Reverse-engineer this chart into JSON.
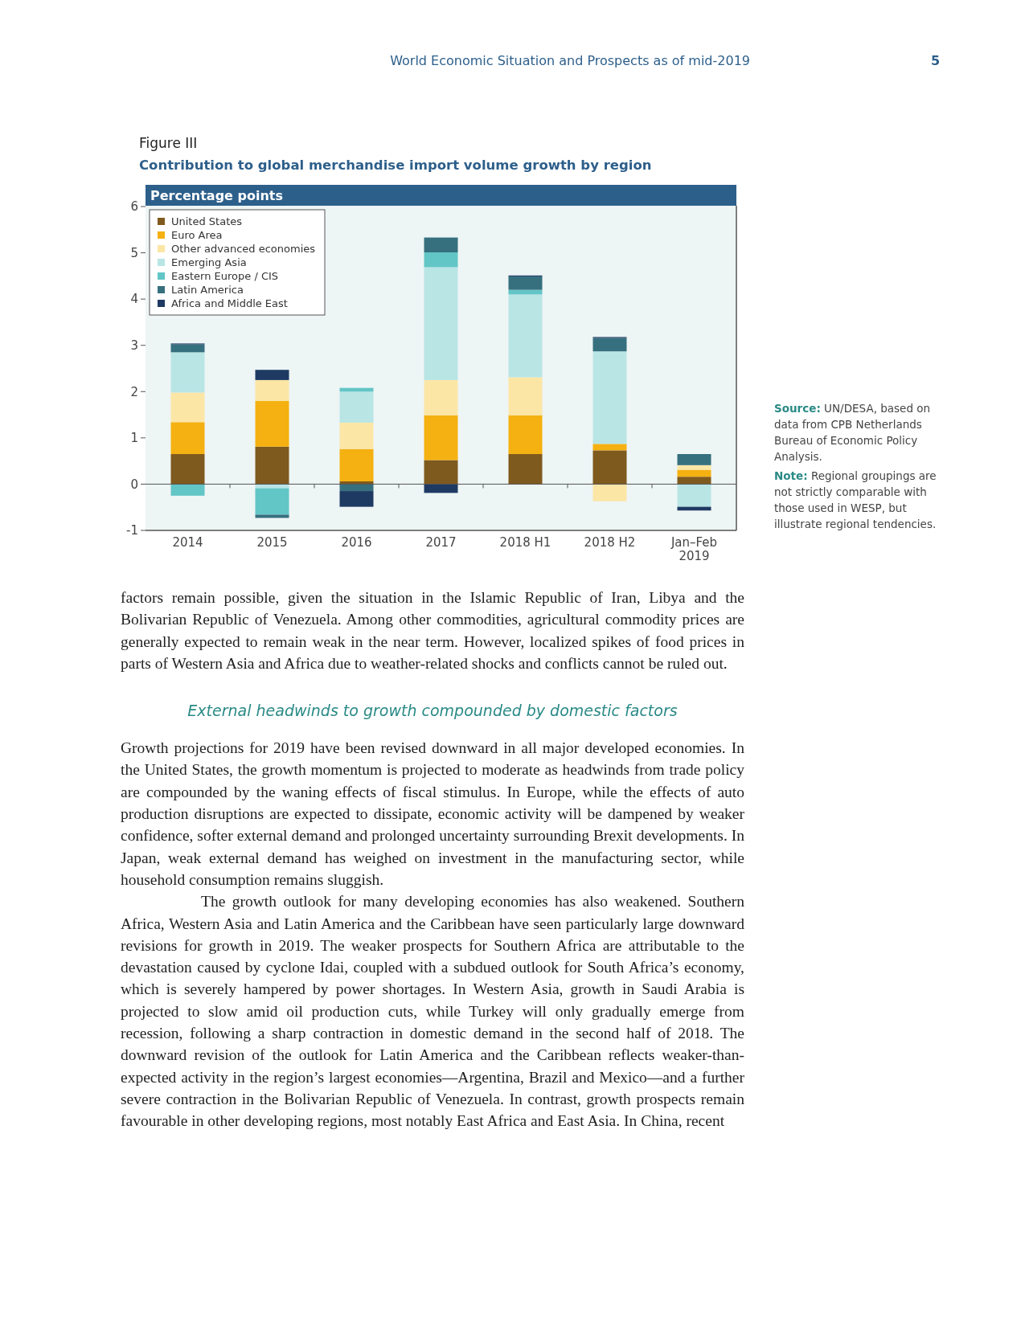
{
  "chart_data": {
    "type": "bar",
    "title": "Contribution to global merchandise import volume growth by region",
    "ylabel": "Percentage points",
    "categories": [
      "2014",
      "2015",
      "2016",
      "2017",
      "2018 H1",
      "2018 H2",
      "Jan–Feb 2019"
    ],
    "stacked": true,
    "legend": "top left",
    "ylim": [
      -1,
      6
    ],
    "yticks": [
      -1,
      0,
      1,
      2,
      3,
      4,
      5,
      6
    ],
    "series": [
      {
        "name": "United States",
        "color": "#7f5a1e",
        "values": [
          0.65,
          0.81,
          0.06,
          0.52,
          0.65,
          0.73,
          0.16
        ]
      },
      {
        "name": "Euro Area",
        "color": "#f5b111",
        "values": [
          0.69,
          0.99,
          0.7,
          0.97,
          0.84,
          0.14,
          0.15
        ]
      },
      {
        "name": "Other advanced economies",
        "color": "#fbe6a6",
        "values": [
          0.64,
          0.45,
          0.57,
          0.76,
          0.82,
          -0.37,
          0.1
        ]
      },
      {
        "name": "Emerging Asia",
        "color": "#b9e5e5",
        "values": [
          0.87,
          -0.09,
          0.67,
          2.44,
          1.79,
          2.0,
          -0.49
        ]
      },
      {
        "name": "Eastern Europe / CIS",
        "color": "#62c5c6",
        "values": [
          -0.25,
          -0.57,
          0.08,
          0.32,
          0.1,
          null,
          null
        ]
      },
      {
        "name": "Latin America",
        "color": "#36707e",
        "values": [
          0.17,
          -0.07,
          -0.15,
          0.32,
          0.29,
          0.29,
          0.24
        ]
      },
      {
        "name": "Africa and Middle East",
        "color": "#1e3a63",
        "values": [
          0.02,
          0.22,
          -0.34,
          -0.19,
          0.02,
          0.02,
          -0.08
        ]
      }
    ],
    "annotations": [
      "World Economic Situation and Prospects as of mid-2019",
      "5",
      "Figure III",
      "Source: UN/DESA, based on data from CPB Netherlands Bureau of Economic Policy Analysis.",
      "Note: Regional groupings are not strictly comparable with those used in WESP, but illustrate regional tendencies.",
      "factors remain possible, given the situation in the Islamic Republic of Iran, Libya and the Bolivarian Republic of Venezuela. Among other commodities, agricultural commodity prices are generally expected to remain weak in the near term. However, localized spikes of food prices in parts of Western Asia and Africa due to weather-related shocks and conflicts cannot be ruled out.",
      "External headwinds to growth compounded by domestic factors",
      "Growth projections for 2019 have been revised downward in all major developed economies. In the United States, the growth momentum is projected to moderate as headwinds from trade policy are compounded by the waning effects of fiscal stimulus. In Europe, while the effects of auto production disruptions are expected to dissipate, economic activity will be dampened by weaker confidence, softer external demand and prolonged uncertainty surrounding Brexit developments. In Japan, weak external demand has weighed on investment in the manufacturing sector, while household consumption remains sluggish.",
      "The growth outlook for many developing economies has also weakened. Southern Africa, Western Asia and Latin America and the Caribbean have seen particularly large downward revisions for growth in 2019. The weaker prospects for Southern Africa are attributable to the devastation caused by cyclone Idai, coupled with a subdued outlook for South Africa’s economy, which is severely hampered by power shortages. In Western Asia, growth in Saudi Arabia is projected to slow amid oil production cuts, while Turkey will only gradually emerge from recession, following a sharp contraction in domestic demand in the second half of 2018. The downward revision of the outlook for Latin America and the Caribbean reflects weaker-than-expected activity in the region’s largest economies—Argentina, Brazil and Mexico—and a further severe contraction in the Bolivarian Republic of Venezuela. In contrast, growth prospects remain favourable in other developing regions, most notably East Africa and East Asia. In China, recent"
    ]
  }
}
